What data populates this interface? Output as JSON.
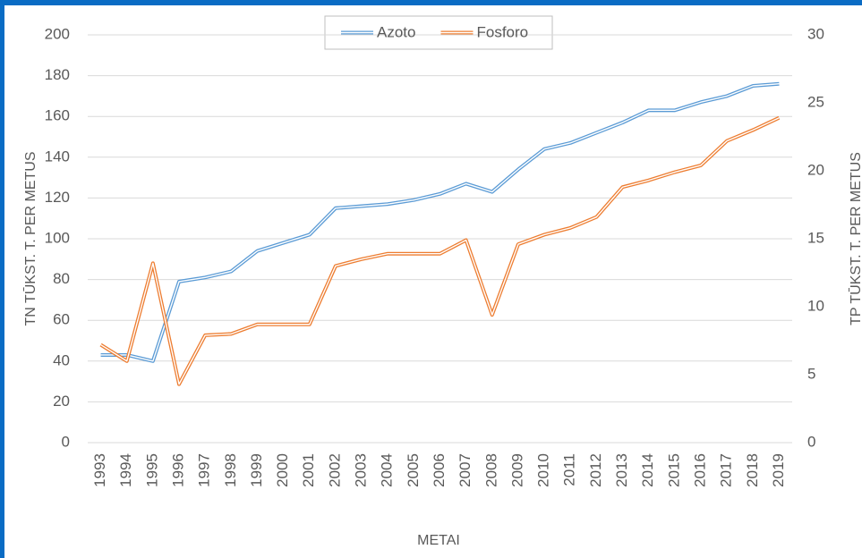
{
  "chart_data": {
    "type": "line",
    "categories": [
      "1993",
      "1994",
      "1995",
      "1996",
      "1997",
      "1998",
      "1999",
      "2000",
      "2001",
      "2002",
      "2003",
      "2004",
      "2005",
      "2006",
      "2007",
      "2008",
      "2009",
      "2010",
      "2011",
      "2012",
      "2013",
      "2014",
      "2015",
      "2016",
      "2017",
      "2018",
      "2019"
    ],
    "series": [
      {
        "name": "Azoto",
        "color": "#5b9bd5",
        "values": [
          43,
          43,
          40,
          79,
          81,
          84,
          94,
          98,
          102,
          115,
          116,
          117,
          119,
          122,
          127,
          123,
          134,
          144,
          147,
          152,
          157,
          163,
          163,
          167,
          170,
          175,
          176
        ]
      },
      {
        "name": "Fosforo",
        "color": "#ed7d31",
        "axis": "y2",
        "values": [
          7.2,
          6.0,
          13.2,
          4.3,
          7.9,
          8.0,
          8.7,
          8.7,
          8.7,
          13.0,
          13.5,
          13.9,
          13.9,
          13.9,
          14.9,
          9.4,
          14.6,
          15.3,
          15.8,
          16.6,
          18.8,
          19.3,
          19.9,
          20.4,
          22.2,
          23.0,
          23.9
        ]
      }
    ],
    "ylabel": "TN TŪKST. T. PER METUS",
    "y2label": "TP TŪKST. T. PER METUS",
    "xlabel": "METAI",
    "ylim": [
      0,
      200
    ],
    "yticks": [
      0,
      20,
      40,
      60,
      80,
      100,
      120,
      140,
      160,
      180,
      200
    ],
    "y2lim": [
      0,
      30
    ],
    "y2ticks": [
      0,
      5,
      10,
      15,
      20,
      25,
      30
    ],
    "grid": true,
    "legend": "top"
  }
}
